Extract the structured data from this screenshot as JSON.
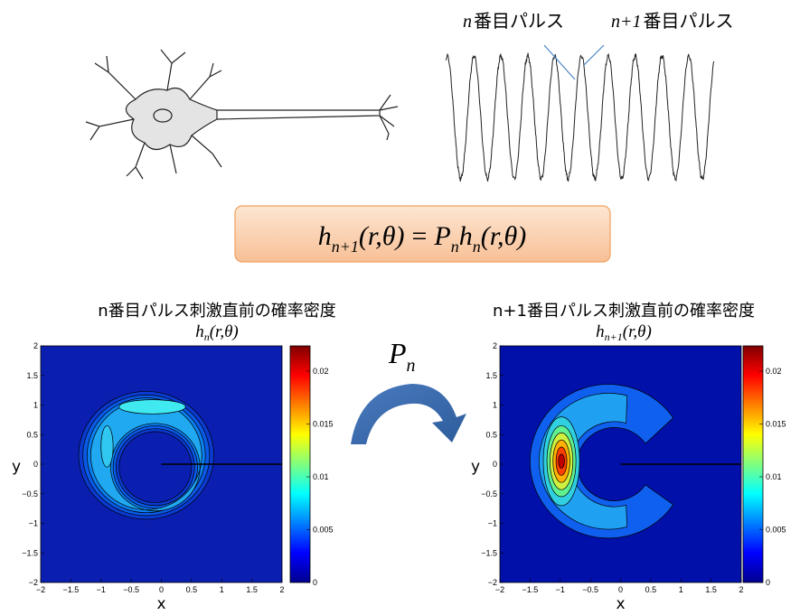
{
  "top_labels": [
    {
      "variable": "n",
      "text": "番目パルス"
    },
    {
      "variable": "n+1",
      "text": "番目パルス"
    }
  ],
  "equation": {
    "lhs_symbol": "h",
    "lhs_subscript": "n+1",
    "lhs_args": "(r,θ)",
    "equals": "=",
    "operator": "P",
    "operator_subscript": "n",
    "rhs_symbol": "h",
    "rhs_subscript": "n",
    "rhs_args": "(r,θ)"
  },
  "operator": {
    "symbol": "P",
    "subscript": "n"
  },
  "plots": [
    {
      "title": "n番目パルス刺激直前の確率密度",
      "formula": {
        "symbol": "h",
        "subscript": "n",
        "args": "(r,θ)"
      },
      "x_label": "x",
      "y_label": "y",
      "x_ticks": [
        "−2",
        "−1.5",
        "−1",
        "−0.5",
        "0",
        "0.5",
        "1",
        "1.5",
        "2"
      ],
      "y_ticks": [
        "2",
        "1.5",
        "1",
        "0.5",
        "0",
        "−0.5",
        "−1",
        "−1.5",
        "−2"
      ],
      "colorbar_ticks": [
        "0.02",
        "0.015",
        "0.01",
        "0.005",
        "0"
      ]
    },
    {
      "title": "n+1番目パルス刺激直前の確率密度",
      "formula": {
        "symbol": "h",
        "subscript": "n+1",
        "args": "(r,θ)"
      },
      "x_label": "x",
      "y_label": "y",
      "x_ticks": [
        "−2",
        "−1.5",
        "−1",
        "−0.5",
        "0",
        "0.5",
        "1",
        "1.5",
        "2"
      ],
      "y_ticks": [
        "2",
        "1.5",
        "1",
        "0.5",
        "0",
        "−0.5",
        "−1",
        "−1.5",
        "−2"
      ],
      "colorbar_ticks": [
        "0.02",
        "0.015",
        "0.01",
        "0.005",
        "0"
      ]
    }
  ]
}
